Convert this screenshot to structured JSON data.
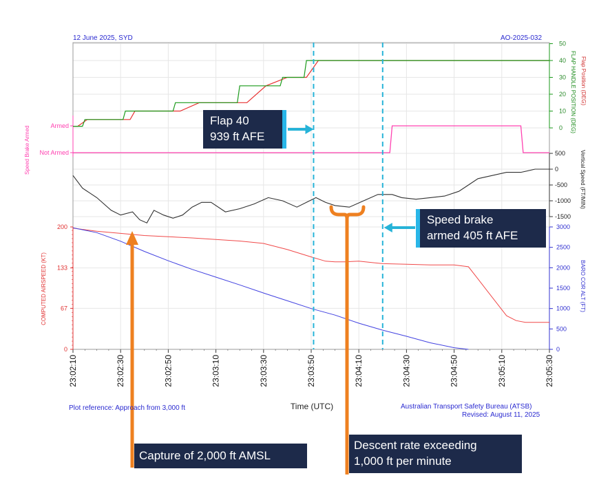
{
  "header": {
    "left": "12 June 2025, SYD",
    "right": "AO-2025-032"
  },
  "footer": {
    "plot_reference": "Plot reference: Approach from 3,000 ft",
    "source": "Australian Transport Safety Bureau (ATSB)",
    "revised": "Revised: August 11, 2025"
  },
  "colors": {
    "flap_position": "#e83030",
    "flap_handle": "#1a9a1a",
    "speed_brake": "#ff40b0",
    "vertical_speed": "#303030",
    "airspeed": "#f04848",
    "altitude": "#4040e0",
    "marker": "#26b3d8",
    "bracket": "#ee8020",
    "callout_bg": "#1d2a4a"
  },
  "chart_data": {
    "type": "line",
    "xlabel": "Time (UTC)",
    "x_ticks": [
      "23:02:10",
      "23:02:30",
      "23:02:50",
      "23:03:10",
      "23:03:30",
      "23:03:50",
      "23:04:10",
      "23:04:30",
      "23:04:50",
      "23:05:10",
      "23:05:30"
    ],
    "x_range": [
      "23:02:10",
      "23:05:30"
    ],
    "panels": [
      {
        "name": "flap",
        "ylabels": [
          "Flap Position (DEG)",
          "FLAP HANDLE POSITION (DEG)"
        ],
        "yticks": [
          0,
          10,
          20,
          30,
          40,
          50
        ],
        "ylim": [
          0,
          50
        ],
        "series": [
          {
            "name": "Flap Position (DEG)",
            "color_key": "flap_position",
            "x": [
              "23:02:10",
              "23:02:12",
              "23:02:16",
              "23:02:24",
              "23:02:34",
              "23:02:36",
              "23:02:55",
              "23:03:03",
              "23:03:23",
              "23:03:31",
              "23:03:40",
              "23:03:48",
              "23:03:53",
              "23:05:30"
            ],
            "y": [
              1,
              1,
              5,
              5,
              5,
              10,
              10,
              15,
              15,
              25,
              30,
              30,
              40,
              40
            ]
          },
          {
            "name": "FLAP HANDLE POSITION (DEG)",
            "color_key": "flap_handle",
            "x": [
              "23:02:10",
              "23:02:14",
              "23:02:15",
              "23:02:19",
              "23:02:20",
              "23:02:31",
              "23:02:32",
              "23:02:52",
              "23:02:53",
              "23:03:19",
              "23:03:20",
              "23:03:37",
              "23:03:38",
              "23:03:47",
              "23:03:48",
              "23:05:30"
            ],
            "y": [
              1,
              1,
              5,
              5,
              5,
              5,
              10,
              10,
              15,
              15,
              25,
              25,
              30,
              30,
              40,
              40
            ]
          }
        ]
      },
      {
        "name": "speed_brake",
        "ylabel": "Speed Brake Armed",
        "states": [
          "Armed",
          "Not Armed"
        ],
        "series": [
          {
            "name": "Speed Brake Armed",
            "color_key": "speed_brake",
            "x": [
              "23:02:10",
              "23:04:23",
              "23:04:24",
              "23:05:18",
              "23:05:19",
              "23:05:30"
            ],
            "y": [
              "Not Armed",
              "Not Armed",
              "Armed",
              "Armed",
              "Not Armed",
              "Not Armed"
            ]
          }
        ]
      },
      {
        "name": "vertical_speed",
        "ylabel": "Vertical Speed (FT/MIN)",
        "yticks": [
          500,
          0,
          -500,
          -1000,
          -1500
        ],
        "ylim": [
          -1500,
          500
        ],
        "series": [
          {
            "name": "Vertical Speed (FT/MIN)",
            "color_key": "vertical_speed",
            "x": [
              "23:02:10",
              "23:02:14",
              "23:02:20",
              "23:02:26",
              "23:02:30",
              "23:02:35",
              "23:02:38",
              "23:02:41",
              "23:02:44",
              "23:02:48",
              "23:02:52",
              "23:02:56",
              "23:03:00",
              "23:03:04",
              "23:03:08",
              "23:03:14",
              "23:03:20",
              "23:03:26",
              "23:03:32",
              "23:03:38",
              "23:03:44",
              "23:03:48",
              "23:03:52",
              "23:03:56",
              "23:04:00",
              "23:04:06",
              "23:04:12",
              "23:04:18",
              "23:04:24",
              "23:04:28",
              "23:04:34",
              "23:04:40",
              "23:04:46",
              "23:04:52",
              "23:04:56",
              "23:05:00",
              "23:05:06",
              "23:05:12",
              "23:05:18",
              "23:05:24",
              "23:05:30"
            ],
            "y": [
              -200,
              -600,
              -900,
              -1300,
              -1450,
              -1350,
              -1600,
              -1700,
              -1300,
              -1450,
              -1550,
              -1450,
              -1200,
              -1050,
              -1050,
              -1350,
              -1250,
              -1100,
              -900,
              -1000,
              -1200,
              -1050,
              -900,
              -1050,
              -1150,
              -1200,
              -1000,
              -800,
              -800,
              -900,
              -950,
              -900,
              -850,
              -700,
              -500,
              -300,
              -200,
              -100,
              -100,
              0,
              0
            ]
          }
        ]
      },
      {
        "name": "airspeed_altitude",
        "ylabels": [
          "COMPUTED AIRSPEED (KT)",
          "BARO COR ALT (FT)"
        ],
        "yticks_left": [
          0,
          67,
          133,
          200
        ],
        "ylim_left": [
          0,
          200
        ],
        "yticks_right": [
          0,
          500,
          1000,
          1500,
          2000,
          2500,
          3000
        ],
        "ylim_right": [
          0,
          3000
        ],
        "series": [
          {
            "name": "COMPUTED AIRSPEED (KT)",
            "axis": "left",
            "color_key": "airspeed",
            "x": [
              "23:02:10",
              "23:02:20",
              "23:02:40",
              "23:03:00",
              "23:03:20",
              "23:03:30",
              "23:03:40",
              "23:03:50",
              "23:03:56",
              "23:04:00",
              "23:04:04",
              "23:04:10",
              "23:04:20",
              "23:04:30",
              "23:04:40",
              "23:04:50",
              "23:04:56",
              "23:05:00",
              "23:05:04",
              "23:05:08",
              "23:05:12",
              "23:05:16",
              "23:05:20",
              "23:05:24",
              "23:05:30"
            ],
            "y": [
              198,
              193,
              186,
              182,
              177,
              173,
              163,
              151,
              144,
              143,
              143,
              144,
              140,
              139,
              138,
              138,
              135,
              115,
              95,
              75,
              55,
              47,
              44,
              44,
              44
            ]
          },
          {
            "name": "BARO COR ALT (FT)",
            "axis": "right",
            "color_key": "altitude",
            "x": [
              "23:02:10",
              "23:02:20",
              "23:02:30",
              "23:02:40",
              "23:02:50",
              "23:03:00",
              "23:03:10",
              "23:03:20",
              "23:03:30",
              "23:03:40",
              "23:03:50",
              "23:04:00",
              "23:04:10",
              "23:04:20",
              "23:04:30",
              "23:04:40",
              "23:04:50",
              "23:04:56"
            ],
            "y": [
              2980,
              2860,
              2650,
              2400,
              2170,
              1960,
              1770,
              1580,
              1380,
              1190,
              1000,
              840,
              640,
              470,
              320,
              160,
              40,
              0
            ]
          }
        ]
      }
    ],
    "markers": [
      {
        "x": "23:03:51",
        "label": "Flap 40",
        "sub": "939 ft AFE"
      },
      {
        "x": "23:04:20",
        "label": "Speed brake",
        "sub": "armed 405 ft AFE"
      }
    ],
    "annotations": {
      "capture": "Capture of 2,000 ft AMSL",
      "descent_line1": "Descent rate exceeding",
      "descent_line2": "1,000 ft per minute"
    }
  }
}
